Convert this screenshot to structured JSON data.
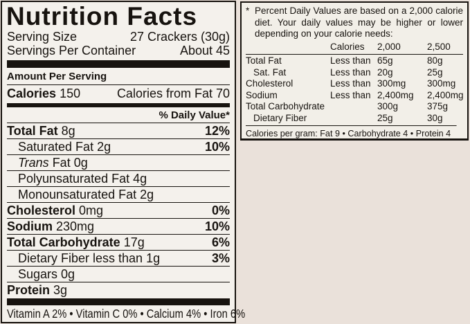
{
  "colors": {
    "page_background": "#eae1da",
    "label_background": "#f4f1ec",
    "ink": "#17130f"
  },
  "left_panel": {
    "title": "Nutrition Facts",
    "serving_size_label": "Serving Size",
    "serving_size_value": "27 Crackers (30g)",
    "servings_per_container_label": "Servings Per Container",
    "servings_per_container_value": "About 45",
    "amount_per_serving": "Amount Per Serving",
    "calories_label": "Calories",
    "calories_value": "150",
    "calories_from_fat": "Calories from Fat 70",
    "daily_value_header": "% Daily Value*",
    "rows": [
      {
        "name": "Total Fat",
        "amount": "8g",
        "dv": "12%",
        "bold": true,
        "indent": false,
        "italic_first": false
      },
      {
        "name": "Saturated Fat",
        "amount": "2g",
        "dv": "10%",
        "bold": false,
        "indent": true,
        "italic_first": false
      },
      {
        "name": "Trans Fat",
        "amount": "0g",
        "dv": "",
        "bold": false,
        "indent": true,
        "italic_first": true
      },
      {
        "name": "Polyunsaturated Fat",
        "amount": "4g",
        "dv": "",
        "bold": false,
        "indent": true,
        "italic_first": false
      },
      {
        "name": "Monounsaturated Fat",
        "amount": "2g",
        "dv": "",
        "bold": false,
        "indent": true,
        "italic_first": false
      },
      {
        "name": "Cholesterol",
        "amount": "0mg",
        "dv": "0%",
        "bold": true,
        "indent": false,
        "italic_first": false
      },
      {
        "name": "Sodium",
        "amount": "230mg",
        "dv": "10%",
        "bold": true,
        "indent": false,
        "italic_first": false
      },
      {
        "name": "Total Carbohydrate",
        "amount": "17g",
        "dv": "6%",
        "bold": true,
        "indent": false,
        "italic_first": false
      },
      {
        "name": "Dietary Fiber",
        "amount": "less than 1g",
        "dv": "3%",
        "bold": false,
        "indent": true,
        "italic_first": false
      },
      {
        "name": "Sugars",
        "amount": "0g",
        "dv": "",
        "bold": false,
        "indent": true,
        "italic_first": false
      },
      {
        "name": "Protein",
        "amount": "3g",
        "dv": "",
        "bold": true,
        "indent": false,
        "italic_first": false
      }
    ],
    "vitamins_line": "Vitamin A 2% • Vitamin C 0% • Calcium 4% • Iron 6%"
  },
  "footnote_panel": {
    "asterisk": "*",
    "note_text": "Percent Daily Values are based on a 2,000 calorie diet. Your daily values may be higher or lower depending on your calorie needs:",
    "table": {
      "header": {
        "col2": "Calories",
        "col3": "2,000",
        "col4": "2,500"
      },
      "rows": [
        {
          "label": "Total Fat",
          "qualifier": "Less than",
          "c2000": "65g",
          "c2500": "80g",
          "indent": false
        },
        {
          "label": "Sat. Fat",
          "qualifier": "Less than",
          "c2000": "20g",
          "c2500": "25g",
          "indent": true
        },
        {
          "label": "Cholesterol",
          "qualifier": "Less than",
          "c2000": "300mg",
          "c2500": "300mg",
          "indent": false
        },
        {
          "label": "Sodium",
          "qualifier": "Less than",
          "c2000": "2,400mg",
          "c2500": "2,400mg",
          "indent": false
        },
        {
          "label": "Total Carbohydrate",
          "qualifier": "",
          "c2000": "300g",
          "c2500": "375g",
          "indent": false
        },
        {
          "label": "Dietary Fiber",
          "qualifier": "",
          "c2000": "25g",
          "c2500": "30g",
          "indent": true
        }
      ]
    },
    "calories_per_gram": "Calories per gram: Fat 9 • Carbohydrate 4 • Protein 4"
  }
}
